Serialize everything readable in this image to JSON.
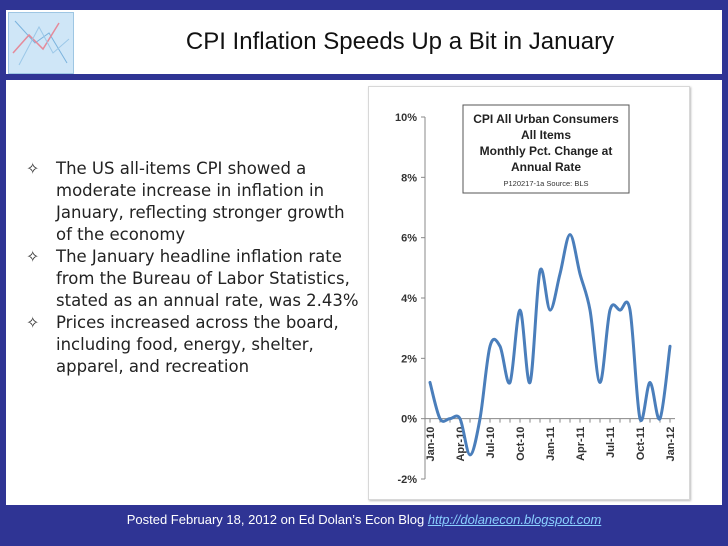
{
  "slide": {
    "title": "CPI Inflation Speeds Up a Bit in January",
    "bullets": [
      "The US all-items CPI showed a moderate increase in inflation in January, reflecting stronger growth of the economy",
      "The January headline inflation rate from the Bureau of Labor Statistics, stated as an annual rate, was 2.43%",
      "Prices increased across the board, including food, energy, shelter, apparel, and recreation"
    ],
    "footer_text": "Posted February 18, 2012 on Ed Dolan’s Econ Blog ",
    "footer_link": "http://dolanecon.blogspot.com"
  },
  "chart_data": {
    "type": "line",
    "title_lines": [
      "CPI All Urban Consumers",
      "All Items",
      "Monthly Pct. Change at",
      "Annual Rate"
    ],
    "source_note": "P120217-1a Source: BLS",
    "x_tick_labels": [
      "Jan-10",
      "Apr-10",
      "Jul-10",
      "Oct-10",
      "Jan-11",
      "Apr-11",
      "Jul-11",
      "Oct-11",
      "Jan-12"
    ],
    "y_tick_labels": [
      "10%",
      "8%",
      "6%",
      "4%",
      "2%",
      "0%",
      "-2%"
    ],
    "y_ticks": [
      10,
      8,
      6,
      4,
      2,
      0,
      -2
    ],
    "ylim": [
      -2,
      10
    ],
    "grid": false,
    "series": [
      {
        "color": "#4a7ebb",
        "x": [
          "Jan-10",
          "Feb-10",
          "Mar-10",
          "Apr-10",
          "May-10",
          "Jun-10",
          "Jul-10",
          "Aug-10",
          "Sep-10",
          "Oct-10",
          "Nov-10",
          "Dec-10",
          "Jan-11",
          "Feb-11",
          "Mar-11",
          "Apr-11",
          "May-11",
          "Jun-11",
          "Jul-11",
          "Aug-11",
          "Sep-11",
          "Oct-11",
          "Nov-11",
          "Dec-11",
          "Jan-12"
        ],
        "values": [
          1.2,
          0.0,
          0.0,
          0.0,
          -1.2,
          0.0,
          2.4,
          2.4,
          1.2,
          3.6,
          1.2,
          4.9,
          3.6,
          4.8,
          6.1,
          4.8,
          3.6,
          1.2,
          3.6,
          3.6,
          3.6,
          0.0,
          1.2,
          0.0,
          2.4
        ]
      }
    ]
  }
}
